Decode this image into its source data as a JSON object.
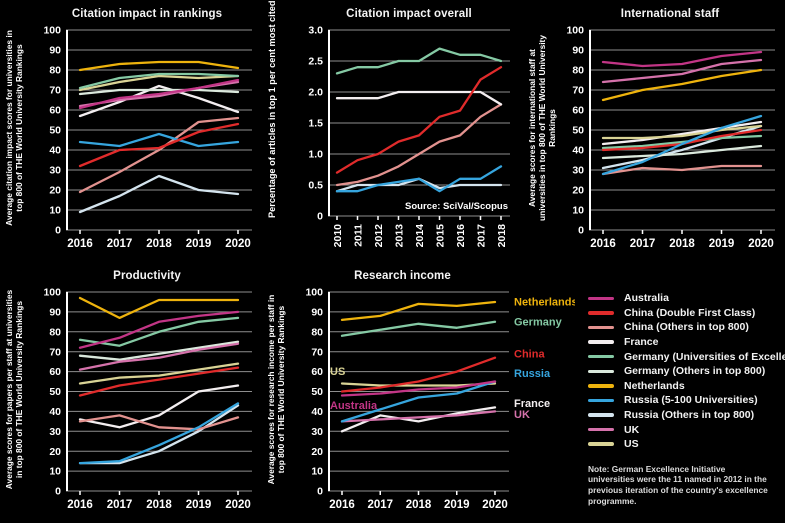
{
  "page": {
    "background": "#000000",
    "text_color": "#f2f2f2"
  },
  "palette": {
    "Australia": "#c23586",
    "China (Double First Class)": "#e02b2b",
    "China (Others in top 800)": "#e2928f",
    "France": "#f3eef0",
    "Germany (Universities of Excellence)": "#85c9a4",
    "Germany (Others in top 800)": "#dbe9dd",
    "Netherlands": "#eeb30d",
    "Russia (5-100 Universities)": "#36a5de",
    "Russia (Others in top 800)": "#d4e4ee",
    "UK": "#d572ab",
    "US": "#d9d395",
    "Germany": "#85c9a4",
    "China": "#e02b2b",
    "Russia": "#36a5de"
  },
  "legend": {
    "items": [
      "Australia",
      "China (Double First Class)",
      "China (Others in top 800)",
      "France",
      "Germany (Universities of Excellence)",
      "Germany (Others in top 800)",
      "Netherlands",
      "Russia (5-100 Universities)",
      "Russia (Others in top 800)",
      "UK",
      "US"
    ],
    "note": "Note: German Excellence Initiative universities were the 11 named in 2012 in the previous iteration of the country's excellence programme."
  },
  "chart_data": [
    {
      "type": "line",
      "title": "Citation impact in rankings",
      "ylabel": "Average citation impact scores for universities in top 800 of THE World University Rankings",
      "ylim": [
        0,
        100
      ],
      "yticks": [
        0,
        10,
        20,
        30,
        40,
        50,
        60,
        70,
        80,
        90,
        100
      ],
      "ytick_labels": [
        "0",
        "10",
        "20",
        "30",
        "40",
        "50",
        "60",
        "70",
        "80",
        "90",
        "100"
      ],
      "x": [
        "2016",
        "2017",
        "2018",
        "2019",
        "2020"
      ],
      "grid": true,
      "series": [
        {
          "name": "Russia (Others in top 800)",
          "values": [
            9,
            17,
            27,
            20,
            18
          ]
        },
        {
          "name": "China (Others in top 800)",
          "values": [
            19,
            29,
            40,
            54,
            56
          ]
        },
        {
          "name": "France",
          "values": [
            57,
            64,
            72,
            66,
            59
          ]
        },
        {
          "name": "US",
          "values": [
            70,
            74,
            77,
            76,
            77
          ]
        },
        {
          "name": "Germany (Others in top 800)",
          "values": [
            68,
            70,
            70,
            70,
            69
          ]
        },
        {
          "name": "Germany (Universities of Excellence)",
          "values": [
            71,
            76,
            78,
            78,
            77
          ]
        },
        {
          "name": "Netherlands",
          "values": [
            80,
            83,
            84,
            84,
            81
          ]
        },
        {
          "name": "Russia (5-100 Universities)",
          "values": [
            44,
            42,
            48,
            42,
            44
          ]
        },
        {
          "name": "China (Double First Class)",
          "values": [
            32,
            40,
            41,
            49,
            53
          ]
        },
        {
          "name": "UK",
          "values": [
            62,
            65,
            67,
            71,
            74
          ]
        },
        {
          "name": "Australia",
          "values": [
            61,
            66,
            68,
            71,
            75
          ]
        }
      ]
    },
    {
      "type": "line",
      "title": "Citation impact overall",
      "ylabel": "Percentage of articles in top 1 per cent most cited",
      "source": "Source: SciVal/Scopus",
      "ylim": [
        0,
        3
      ],
      "yticks": [
        0,
        0.5,
        1.0,
        1.5,
        2.0,
        2.5,
        3.0
      ],
      "ytick_labels": [
        "0",
        "0.5",
        "1.0",
        "1.5",
        "2.0",
        "2.5",
        "3.0"
      ],
      "x": [
        "2010",
        "2011",
        "2012",
        "2013",
        "2014",
        "2015",
        "2016",
        "2017",
        "2018"
      ],
      "x_rotate": true,
      "grid": true,
      "series": [
        {
          "name": "Russia (Others in top 800)",
          "values": [
            0.4,
            0.5,
            0.5,
            0.5,
            0.6,
            0.45,
            0.5,
            0.5,
            0.5
          ]
        },
        {
          "name": "China (Others in top 800)",
          "values": [
            0.5,
            0.55,
            0.65,
            0.8,
            1.0,
            1.2,
            1.3,
            1.6,
            1.8
          ]
        },
        {
          "name": "France",
          "values": [
            1.9,
            1.9,
            1.9,
            2.0,
            2.0,
            2.0,
            2.0,
            2.0,
            1.8
          ]
        },
        {
          "name": "Germany (Universities of Excellence)",
          "values": [
            2.3,
            2.4,
            2.4,
            2.5,
            2.5,
            2.7,
            2.6,
            2.6,
            2.5
          ]
        },
        {
          "name": "Russia (5-100 Universities)",
          "values": [
            0.4,
            0.4,
            0.5,
            0.55,
            0.6,
            0.4,
            0.6,
            0.6,
            0.8
          ]
        },
        {
          "name": "China (Double First Class)",
          "values": [
            0.7,
            0.9,
            1.0,
            1.2,
            1.3,
            1.6,
            1.7,
            2.2,
            2.4
          ]
        }
      ]
    },
    {
      "type": "line",
      "title": "International staff",
      "ylabel": "Average scores for international staff at universities in top 800 of THE World University Rankings",
      "ylim": [
        0,
        100
      ],
      "yticks": [
        0,
        10,
        20,
        30,
        40,
        50,
        60,
        70,
        80,
        90,
        100
      ],
      "ytick_labels": [
        "0",
        "10",
        "20",
        "30",
        "40",
        "50",
        "60",
        "70",
        "80",
        "90",
        "100"
      ],
      "x": [
        "2016",
        "2017",
        "2018",
        "2019",
        "2020"
      ],
      "grid": true,
      "series": [
        {
          "name": "Russia (Others in top 800)",
          "values": [
            31,
            35,
            40,
            46,
            52
          ]
        },
        {
          "name": "Germany (Others in top 800)",
          "values": [
            36,
            37,
            38,
            40,
            42
          ]
        },
        {
          "name": "France",
          "values": [
            43,
            45,
            48,
            51,
            54
          ]
        },
        {
          "name": "US",
          "values": [
            46,
            46,
            47,
            50,
            52
          ]
        },
        {
          "name": "China (Others in top 800)",
          "values": [
            28,
            31,
            30,
            32,
            32
          ]
        },
        {
          "name": "Germany (Universities of Excellence)",
          "values": [
            41,
            42,
            44,
            46,
            47
          ]
        },
        {
          "name": "China (Double First Class)",
          "values": [
            40,
            41,
            43,
            47,
            50
          ]
        },
        {
          "name": "Netherlands",
          "values": [
            65,
            70,
            73,
            77,
            80
          ]
        },
        {
          "name": "Russia (5-100 Universities)",
          "values": [
            28,
            34,
            43,
            51,
            57
          ]
        },
        {
          "name": "UK",
          "values": [
            74,
            76,
            78,
            83,
            85
          ]
        },
        {
          "name": "Australia",
          "values": [
            84,
            82,
            83,
            87,
            89
          ]
        }
      ]
    },
    {
      "type": "line",
      "title": "Productivity",
      "ylabel": "Average scores for papers per staff at universities in top 800 of THE World University Rankings",
      "ylim": [
        0,
        100
      ],
      "yticks": [
        0,
        10,
        20,
        30,
        40,
        50,
        60,
        70,
        80,
        90,
        100
      ],
      "ytick_labels": [
        "0",
        "10",
        "20",
        "30",
        "40",
        "50",
        "60",
        "70",
        "80",
        "90",
        "100"
      ],
      "x": [
        "2016",
        "2017",
        "2018",
        "2019",
        "2020"
      ],
      "grid": true,
      "series": [
        {
          "name": "Russia (Others in top 800)",
          "values": [
            14,
            14,
            20,
            30,
            43
          ]
        },
        {
          "name": "France",
          "values": [
            36,
            32,
            38,
            50,
            53
          ]
        },
        {
          "name": "Germany (Others in top 800)",
          "values": [
            68,
            66,
            69,
            72,
            75
          ]
        },
        {
          "name": "China (Others in top 800)",
          "values": [
            35,
            38,
            32,
            31,
            37
          ]
        },
        {
          "name": "US",
          "values": [
            54,
            57,
            58,
            61,
            64
          ]
        },
        {
          "name": "UK",
          "values": [
            61,
            65,
            67,
            71,
            74
          ]
        },
        {
          "name": "Germany (Universities of Excellence)",
          "values": [
            76,
            73,
            80,
            85,
            87
          ]
        },
        {
          "name": "Netherlands",
          "values": [
            97,
            87,
            96,
            96,
            96
          ]
        },
        {
          "name": "China (Double First Class)",
          "values": [
            48,
            53,
            56,
            59,
            62
          ]
        },
        {
          "name": "Russia (5-100 Universities)",
          "values": [
            14,
            15,
            23,
            32,
            44
          ]
        },
        {
          "name": "Australia",
          "values": [
            72,
            77,
            85,
            88,
            90
          ]
        }
      ]
    },
    {
      "type": "line",
      "title": "Research income",
      "ylabel": "Average scores for research income per staff in top 800 of THE World University Rankings",
      "ylim": [
        0,
        100
      ],
      "yticks": [
        0,
        10,
        20,
        30,
        40,
        50,
        60,
        70,
        80,
        90,
        100
      ],
      "ytick_labels": [
        "0",
        "10",
        "20",
        "30",
        "40",
        "50",
        "60",
        "70",
        "80",
        "90",
        "100"
      ],
      "x": [
        "2016",
        "2017",
        "2018",
        "2019",
        "2020"
      ],
      "grid": true,
      "series": [
        {
          "name": "France",
          "values": [
            30,
            38,
            35,
            39,
            42
          ]
        },
        {
          "name": "UK",
          "values": [
            35,
            36,
            37,
            38,
            40
          ]
        },
        {
          "name": "US",
          "values": [
            54,
            53,
            53,
            53,
            54
          ]
        },
        {
          "name": "Germany",
          "values": [
            78,
            81,
            84,
            82,
            85
          ]
        },
        {
          "name": "Netherlands",
          "values": [
            86,
            88,
            94,
            93,
            95
          ]
        },
        {
          "name": "China",
          "values": [
            50,
            52,
            55,
            60,
            67
          ]
        },
        {
          "name": "Russia",
          "values": [
            35,
            41,
            47,
            49,
            55
          ]
        },
        {
          "name": "Australia",
          "values": [
            48,
            49,
            51,
            52,
            55
          ]
        }
      ],
      "inline_labels": [
        {
          "name": "Netherlands",
          "text": "Netherlands",
          "side": "right",
          "at": 95
        },
        {
          "name": "Germany",
          "text": "Germany",
          "side": "right",
          "at": 85
        },
        {
          "name": "China",
          "text": "China",
          "side": "right",
          "at": 69
        },
        {
          "name": "Russia",
          "text": "Russia",
          "side": "right",
          "at": 59
        },
        {
          "name": "France",
          "text": "France",
          "side": "right",
          "at": 44
        },
        {
          "name": "UK",
          "text": "UK",
          "side": "right",
          "at": 38.5
        },
        {
          "name": "US",
          "text": "US",
          "side": "left",
          "at": 60
        },
        {
          "name": "Australia",
          "text": "Australia",
          "side": "left",
          "at": 43
        }
      ]
    }
  ]
}
